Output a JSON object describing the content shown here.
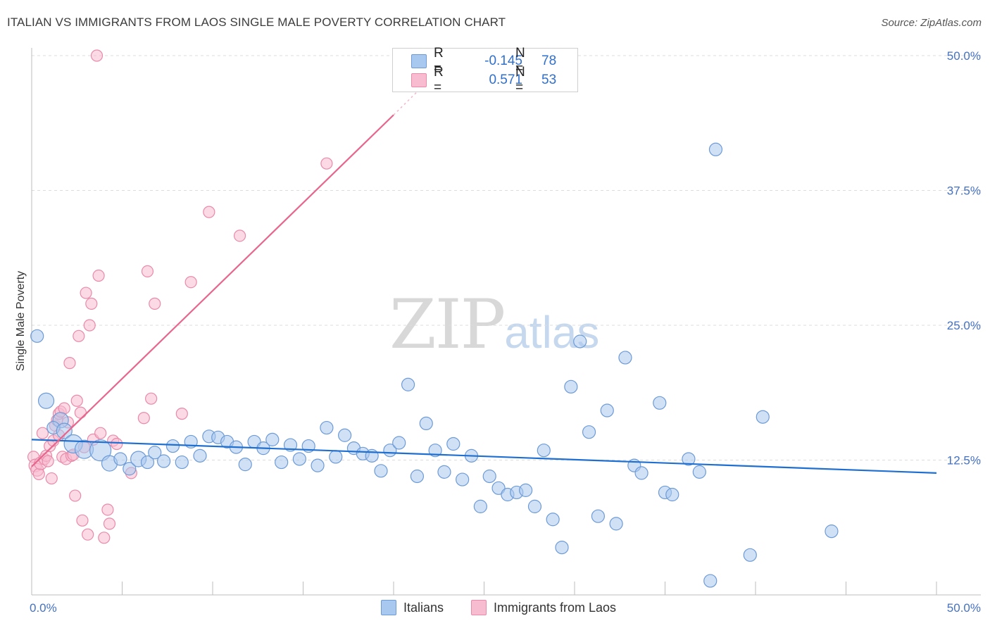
{
  "header": {
    "title": "ITALIAN VS IMMIGRANTS FROM LAOS SINGLE MALE POVERTY CORRELATION CHART",
    "source": "Source: ZipAtlas.com"
  },
  "watermark": {
    "zip": "ZIP",
    "atlas": "atlas"
  },
  "legend": {
    "rows": [
      {
        "r_label": "R =",
        "r_value": "-0.145",
        "n_label": "N =",
        "n_value": "78",
        "color": "#a9c8ef"
      },
      {
        "r_label": "R =",
        "r_value": "0.571",
        "n_label": "N =",
        "n_value": "53",
        "color": "#f7bcd0"
      }
    ]
  },
  "bottom_legend": {
    "series_a": "Italians",
    "series_b": "Immigrants from Laos"
  },
  "colors": {
    "blue_fill": "#a9c8ef",
    "blue_stroke": "#6d9bd6",
    "blue_line": "#1f6fd1",
    "pink_fill": "#f7bcd0",
    "pink_stroke": "#e98aa9",
    "pink_line": "#e8658d",
    "grid": "#dcdcdc",
    "axis_text": "#4472c4"
  },
  "chart_data": {
    "type": "scatter",
    "title": "ITALIAN VS IMMIGRANTS FROM LAOS SINGLE MALE POVERTY CORRELATION CHART",
    "xlabel": "",
    "ylabel": "Single Male Poverty",
    "xlim": [
      0,
      50
    ],
    "ylim": [
      0,
      50
    ],
    "y_ticks": [
      12.5,
      25.0,
      37.5,
      50.0
    ],
    "y_tick_labels": [
      "12.5%",
      "25.0%",
      "37.5%",
      "50.0%"
    ],
    "x_tick_labels": [
      "0.0%",
      "50.0%"
    ],
    "x_minor_ticks": [
      5,
      10,
      15,
      20,
      25,
      30,
      35,
      40,
      45,
      50
    ],
    "series": [
      {
        "name": "Italians",
        "R": -0.145,
        "N": 78,
        "trend": {
          "x": [
            0,
            50
          ],
          "y": [
            14.4,
            11.3
          ]
        },
        "points": [
          [
            0.3,
            24.0,
            9
          ],
          [
            0.8,
            18.0,
            11
          ],
          [
            1.6,
            16.2,
            11
          ],
          [
            1.2,
            15.5,
            9
          ],
          [
            1.8,
            15.2,
            11
          ],
          [
            2.3,
            14.0,
            13
          ],
          [
            2.9,
            13.5,
            13
          ],
          [
            3.8,
            13.4,
            15
          ],
          [
            4.3,
            12.2,
            11
          ],
          [
            4.9,
            12.6,
            9
          ],
          [
            5.4,
            11.7,
            9
          ],
          [
            5.9,
            12.6,
            11
          ],
          [
            6.4,
            12.3,
            9
          ],
          [
            6.8,
            13.2,
            9
          ],
          [
            7.3,
            12.4,
            9
          ],
          [
            7.8,
            13.8,
            9
          ],
          [
            8.3,
            12.3,
            9
          ],
          [
            8.8,
            14.2,
            9
          ],
          [
            9.3,
            12.9,
            9
          ],
          [
            9.8,
            14.7,
            9
          ],
          [
            10.3,
            14.6,
            9
          ],
          [
            10.8,
            14.2,
            9
          ],
          [
            11.3,
            13.7,
            9
          ],
          [
            11.8,
            12.1,
            9
          ],
          [
            12.3,
            14.2,
            9
          ],
          [
            12.8,
            13.6,
            9
          ],
          [
            13.3,
            14.4,
            9
          ],
          [
            13.8,
            12.3,
            9
          ],
          [
            14.3,
            13.9,
            9
          ],
          [
            14.8,
            12.6,
            9
          ],
          [
            15.3,
            13.8,
            9
          ],
          [
            15.8,
            12.0,
            9
          ],
          [
            16.3,
            15.5,
            9
          ],
          [
            16.8,
            12.8,
            9
          ],
          [
            17.3,
            14.8,
            9
          ],
          [
            17.8,
            13.6,
            9
          ],
          [
            18.3,
            13.1,
            9
          ],
          [
            18.8,
            12.9,
            9
          ],
          [
            19.3,
            11.5,
            9
          ],
          [
            19.8,
            13.4,
            9
          ],
          [
            20.3,
            14.1,
            9
          ],
          [
            20.8,
            19.5,
            9
          ],
          [
            21.3,
            11.0,
            9
          ],
          [
            21.8,
            15.9,
            9
          ],
          [
            22.3,
            13.4,
            9
          ],
          [
            22.8,
            11.4,
            9
          ],
          [
            23.3,
            14.0,
            9
          ],
          [
            23.8,
            10.7,
            9
          ],
          [
            24.3,
            12.9,
            9
          ],
          [
            24.8,
            8.2,
            9
          ],
          [
            25.3,
            11.0,
            9
          ],
          [
            25.8,
            9.9,
            9
          ],
          [
            26.3,
            9.3,
            9
          ],
          [
            26.8,
            9.5,
            9
          ],
          [
            27.3,
            9.7,
            9
          ],
          [
            27.8,
            8.2,
            9
          ],
          [
            28.3,
            13.4,
            9
          ],
          [
            28.8,
            7.0,
            9
          ],
          [
            29.3,
            4.4,
            9
          ],
          [
            29.8,
            19.3,
            9
          ],
          [
            30.3,
            23.5,
            9
          ],
          [
            30.8,
            15.1,
            9
          ],
          [
            31.3,
            7.3,
            9
          ],
          [
            31.8,
            17.1,
            9
          ],
          [
            32.3,
            6.6,
            9
          ],
          [
            32.8,
            22.0,
            9
          ],
          [
            33.3,
            12.0,
            9
          ],
          [
            33.7,
            11.3,
            9
          ],
          [
            34.7,
            17.8,
            9
          ],
          [
            35.0,
            9.5,
            9
          ],
          [
            35.4,
            9.3,
            9
          ],
          [
            36.3,
            12.6,
            9
          ],
          [
            36.9,
            11.4,
            9
          ],
          [
            37.8,
            41.3,
            9
          ],
          [
            37.5,
            1.3,
            9
          ],
          [
            39.7,
            3.7,
            9
          ],
          [
            40.4,
            16.5,
            9
          ],
          [
            44.2,
            5.9,
            9
          ]
        ]
      },
      {
        "name": "Immigrants from Laos",
        "R": 0.571,
        "N": 53,
        "trend": {
          "x": [
            0,
            20.0
          ],
          "y": [
            11.9,
            44.5
          ]
        },
        "trend_dashed": {
          "x": [
            20.0,
            22.0
          ],
          "y": [
            44.5,
            47.8
          ]
        },
        "points": [
          [
            0.1,
            12.8,
            8
          ],
          [
            0.2,
            12.0,
            9
          ],
          [
            0.3,
            11.6,
            9
          ],
          [
            0.4,
            11.2,
            8
          ],
          [
            0.5,
            12.2,
            9
          ],
          [
            0.6,
            15.0,
            8
          ],
          [
            0.7,
            12.6,
            8
          ],
          [
            0.8,
            12.9,
            8
          ],
          [
            0.9,
            12.4,
            8
          ],
          [
            1.0,
            13.8,
            8
          ],
          [
            1.1,
            10.8,
            8
          ],
          [
            1.2,
            14.3,
            8
          ],
          [
            1.3,
            15.7,
            8
          ],
          [
            1.4,
            16.2,
            8
          ],
          [
            1.5,
            16.8,
            8
          ],
          [
            1.6,
            17.0,
            8
          ],
          [
            1.7,
            12.8,
            8
          ],
          [
            1.8,
            17.3,
            8
          ],
          [
            1.9,
            12.6,
            8
          ],
          [
            2.0,
            16.0,
            8
          ],
          [
            2.1,
            21.5,
            8
          ],
          [
            2.2,
            12.9,
            8
          ],
          [
            2.3,
            13.0,
            8
          ],
          [
            2.4,
            9.2,
            8
          ],
          [
            2.5,
            18.0,
            8
          ],
          [
            2.6,
            24.0,
            8
          ],
          [
            2.7,
            16.9,
            8
          ],
          [
            2.8,
            6.9,
            8
          ],
          [
            2.9,
            13.7,
            8
          ],
          [
            3.0,
            28.0,
            8
          ],
          [
            3.1,
            5.6,
            8
          ],
          [
            3.2,
            25.0,
            8
          ],
          [
            3.3,
            27.0,
            8
          ],
          [
            3.4,
            14.4,
            8
          ],
          [
            3.6,
            50.0,
            8
          ],
          [
            3.7,
            29.6,
            8
          ],
          [
            3.8,
            15.0,
            8
          ],
          [
            4.0,
            5.3,
            8
          ],
          [
            4.2,
            7.9,
            8
          ],
          [
            4.3,
            6.6,
            8
          ],
          [
            4.5,
            14.3,
            8
          ],
          [
            4.7,
            14.0,
            8
          ],
          [
            5.5,
            11.3,
            8
          ],
          [
            6.2,
            16.4,
            8
          ],
          [
            6.4,
            30.0,
            8
          ],
          [
            6.6,
            18.2,
            8
          ],
          [
            6.8,
            27.0,
            8
          ],
          [
            8.3,
            16.8,
            8
          ],
          [
            8.8,
            29.0,
            8
          ],
          [
            9.8,
            35.5,
            8
          ],
          [
            11.5,
            33.3,
            8
          ],
          [
            16.3,
            40.0,
            8
          ],
          [
            1.5,
            14.8,
            8
          ]
        ]
      }
    ]
  }
}
